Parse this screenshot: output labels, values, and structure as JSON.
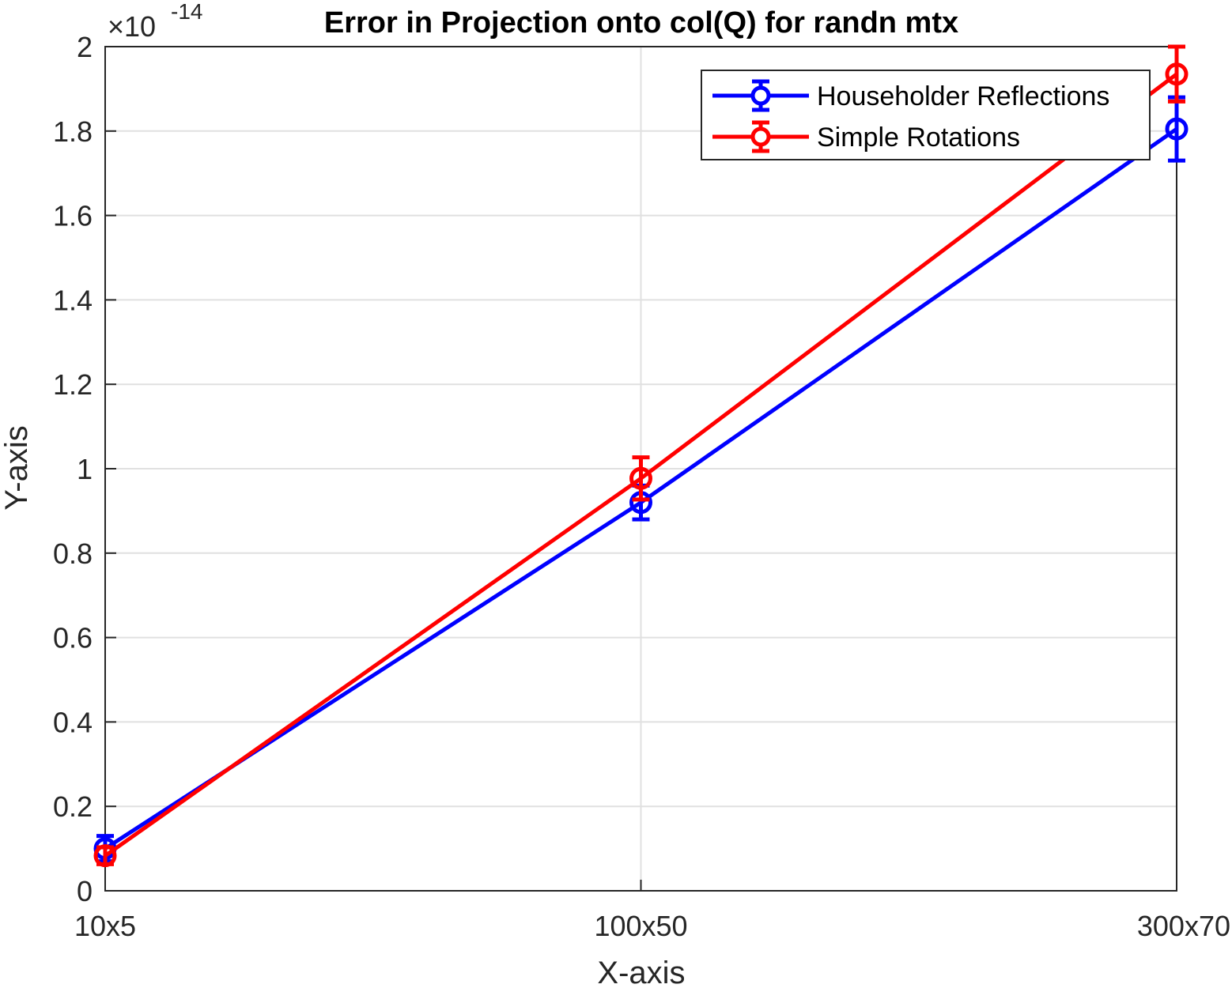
{
  "chart_data": {
    "type": "line",
    "title": "Error in Projection onto col(Q) for randn mtx",
    "xlabel": "X-axis",
    "ylabel": "Y-axis",
    "categories": [
      "10x5",
      "100x50",
      "300x70"
    ],
    "y_ticks": [
      "0",
      "0.2",
      "0.4",
      "0.6",
      "0.8",
      "1",
      "1.2",
      "1.4",
      "1.6",
      "1.8",
      "2"
    ],
    "y_tick_values": [
      0,
      0.2,
      0.4,
      0.6,
      0.8,
      1.0,
      1.2,
      1.4,
      1.6,
      1.8,
      2.0
    ],
    "ylim": [
      0,
      2
    ],
    "y_multiplier": {
      "base": "×10",
      "exponent": "-14"
    },
    "grid": true,
    "legend_position": "top-right",
    "series": [
      {
        "name": "Householder Reflections",
        "color": "#0000ff",
        "values": [
          0.1,
          0.92,
          1.805
        ],
        "error": [
          0.03,
          0.04,
          0.075
        ],
        "marker": "circle"
      },
      {
        "name": "Simple Rotations",
        "color": "#ff0000",
        "values": [
          0.083,
          0.977,
          1.935
        ],
        "error": [
          0.02,
          0.05,
          0.065
        ],
        "marker": "circle"
      }
    ]
  }
}
